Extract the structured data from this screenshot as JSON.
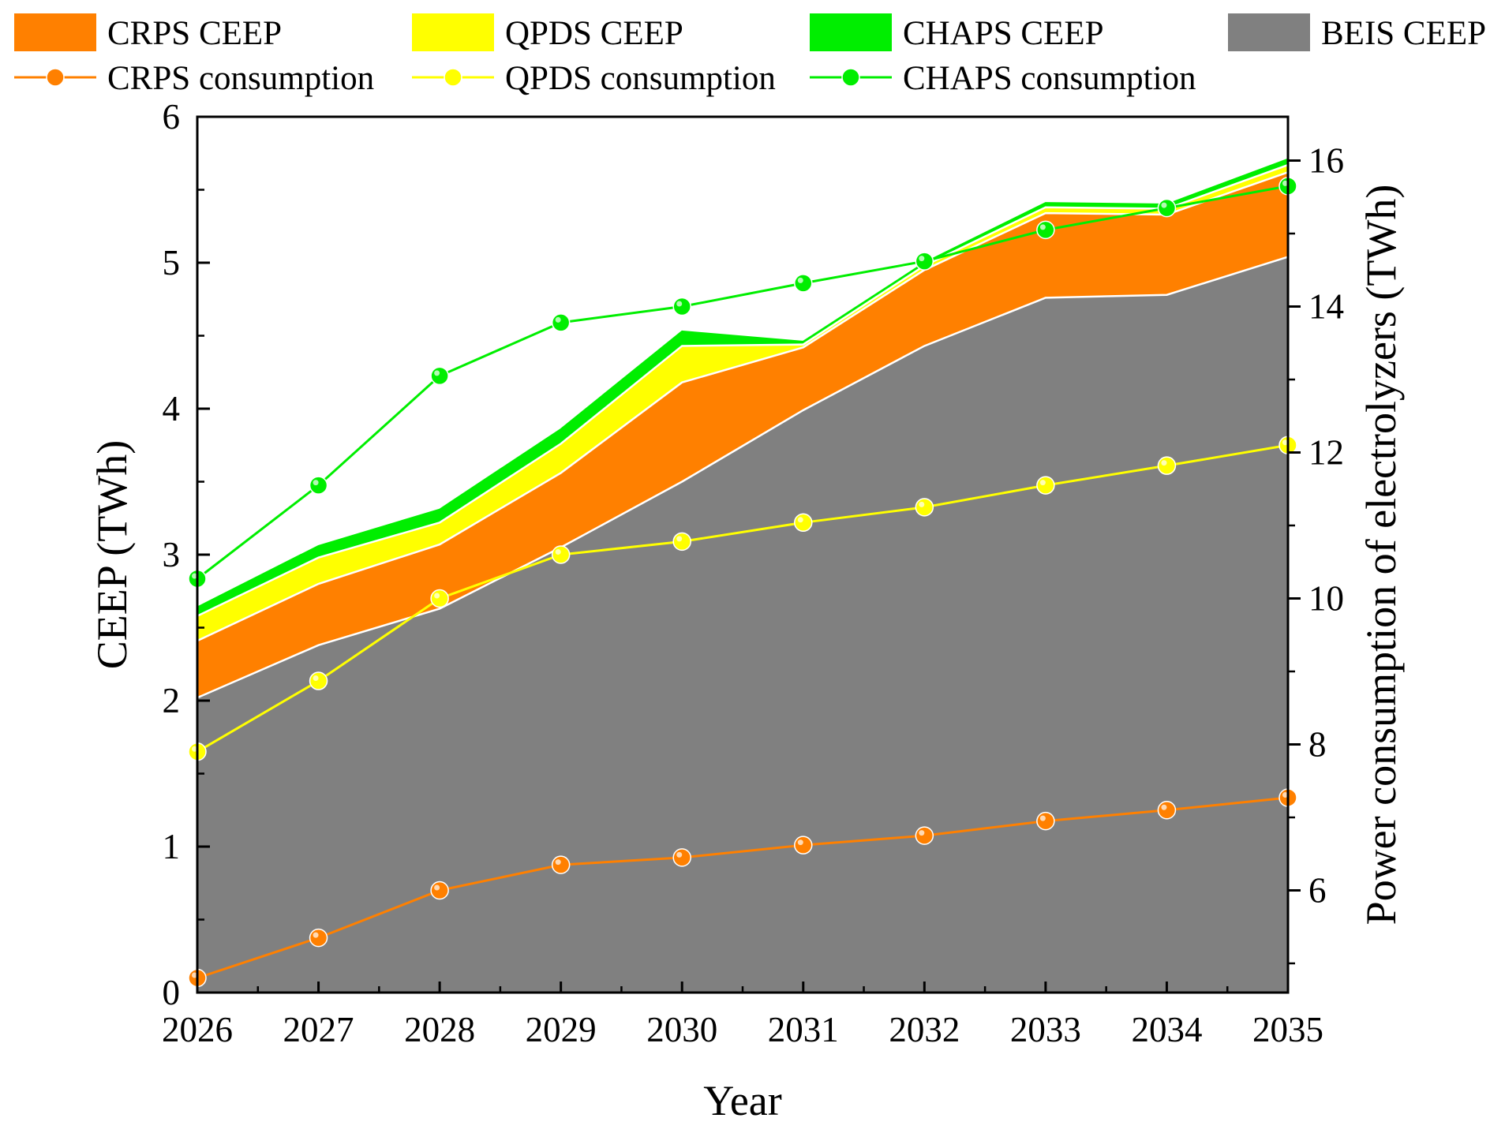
{
  "chart_data": {
    "type": "area",
    "x": [
      2026,
      2027,
      2028,
      2029,
      2030,
      2031,
      2032,
      2033,
      2034,
      2035
    ],
    "xlabel": "Year",
    "ylabel": "CEEP (TWh)",
    "ylabel_right": "Power consumption of electrolyzers (TWh)",
    "ylim": [
      0,
      6
    ],
    "ylim_right": [
      4.6,
      16.6
    ],
    "yticks": [
      0,
      1,
      2,
      3,
      4,
      5,
      6
    ],
    "yticks_right": [
      6,
      8,
      10,
      12,
      14,
      16
    ],
    "areas": [
      {
        "name": "BEIS CEEP",
        "color": "#808080",
        "values": [
          2.02,
          2.38,
          2.63,
          3.05,
          3.5,
          3.99,
          4.43,
          4.76,
          4.78,
          5.04
        ]
      },
      {
        "name": "CRPS CEEP",
        "color": "#ff8000",
        "values": [
          2.41,
          2.8,
          3.07,
          3.56,
          4.18,
          4.42,
          4.95,
          5.34,
          5.33,
          5.62
        ]
      },
      {
        "name": "QPDS CEEP",
        "color": "#ffff00",
        "values": [
          2.58,
          2.98,
          3.22,
          3.76,
          4.43,
          4.44,
          4.98,
          5.38,
          5.37,
          5.67
        ]
      },
      {
        "name": "CHAPS CEEP",
        "color": "#00ee00",
        "values": [
          2.64,
          3.06,
          3.31,
          3.86,
          4.53,
          4.46,
          5.0,
          5.41,
          5.4,
          5.71
        ]
      }
    ],
    "lines": [
      {
        "name": "CRPS consumption",
        "color": "#ff8000",
        "axis": "right",
        "values": [
          4.8,
          5.35,
          6.0,
          6.35,
          6.45,
          6.62,
          6.75,
          6.95,
          7.1,
          7.27
        ]
      },
      {
        "name": "QPDS consumption",
        "color": "#ffff00",
        "axis": "right",
        "values": [
          7.9,
          8.87,
          10.0,
          10.6,
          10.78,
          11.04,
          11.25,
          11.55,
          11.82,
          12.1
        ]
      },
      {
        "name": "CHAPS consumption",
        "color": "#00ee00",
        "axis": "right",
        "values": [
          10.27,
          11.55,
          13.05,
          13.78,
          14.0,
          14.32,
          14.62,
          15.05,
          15.35,
          15.65
        ]
      }
    ],
    "legend": {
      "area_order": [
        "CRPS CEEP",
        "QPDS CEEP",
        "CHAPS CEEP",
        "BEIS CEEP"
      ],
      "line_order": [
        "CRPS consumption",
        "QPDS consumption",
        "CHAPS consumption"
      ],
      "placement": "top"
    }
  }
}
